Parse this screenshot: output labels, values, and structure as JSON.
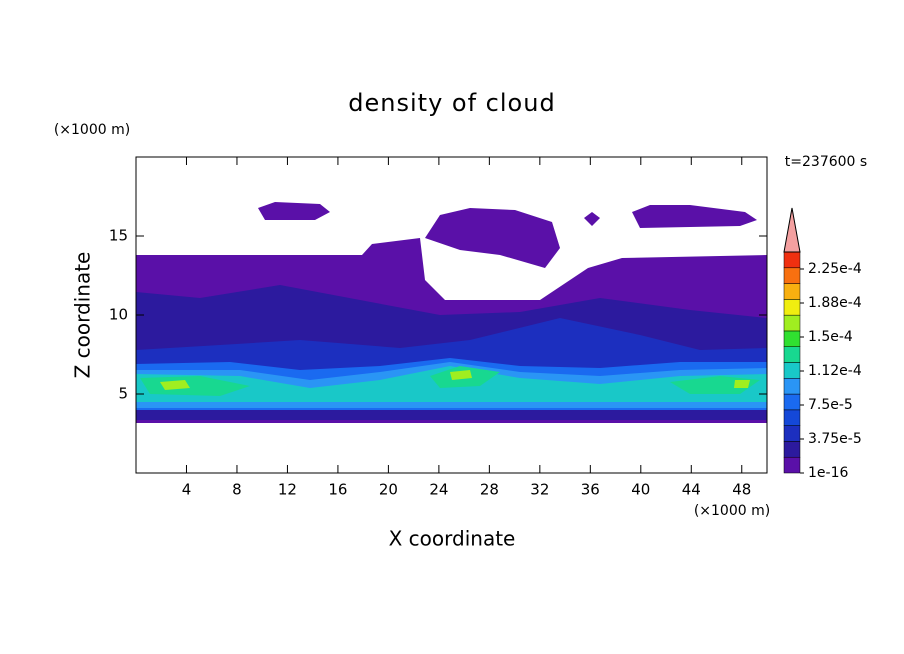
{
  "chart_data": {
    "type": "contour",
    "title": "density of cloud",
    "xlabel": "X coordinate",
    "ylabel": "Z coordinate",
    "xunit": "(×1000 m)",
    "yunit": "(×1000 m)",
    "annotation": "t=237600 s",
    "xlim": [
      0,
      50
    ],
    "ylim": [
      0,
      20
    ],
    "xticks": [
      4,
      8,
      12,
      16,
      20,
      24,
      28,
      32,
      36,
      40,
      44,
      48
    ],
    "yticks": [
      5,
      10,
      15
    ],
    "colorbar": {
      "clim": [
        1e-16,
        0.00024375
      ],
      "ticks": [
        {
          "value": 1e-16,
          "label": "1e-16"
        },
        {
          "value": 3.75e-05,
          "label": "3.75e-5"
        },
        {
          "value": 7.5e-05,
          "label": "7.5e-5"
        },
        {
          "value": 0.0001125,
          "label": "1.12e-4"
        },
        {
          "value": 0.00015,
          "label": "1.5e-4"
        },
        {
          "value": 0.0001875,
          "label": "1.88e-4"
        },
        {
          "value": 0.000225,
          "label": "2.25e-4"
        }
      ],
      "colors": [
        "#5a10a8",
        "#2c1a9e",
        "#1c2fbf",
        "#1448d8",
        "#1a6af0",
        "#2a95f5",
        "#19c8c8",
        "#18d890",
        "#30e030",
        "#a0ee20",
        "#f0ee10",
        "#f8b010",
        "#f87010",
        "#f03010"
      ],
      "extend_color": "#f4a0a0"
    }
  }
}
